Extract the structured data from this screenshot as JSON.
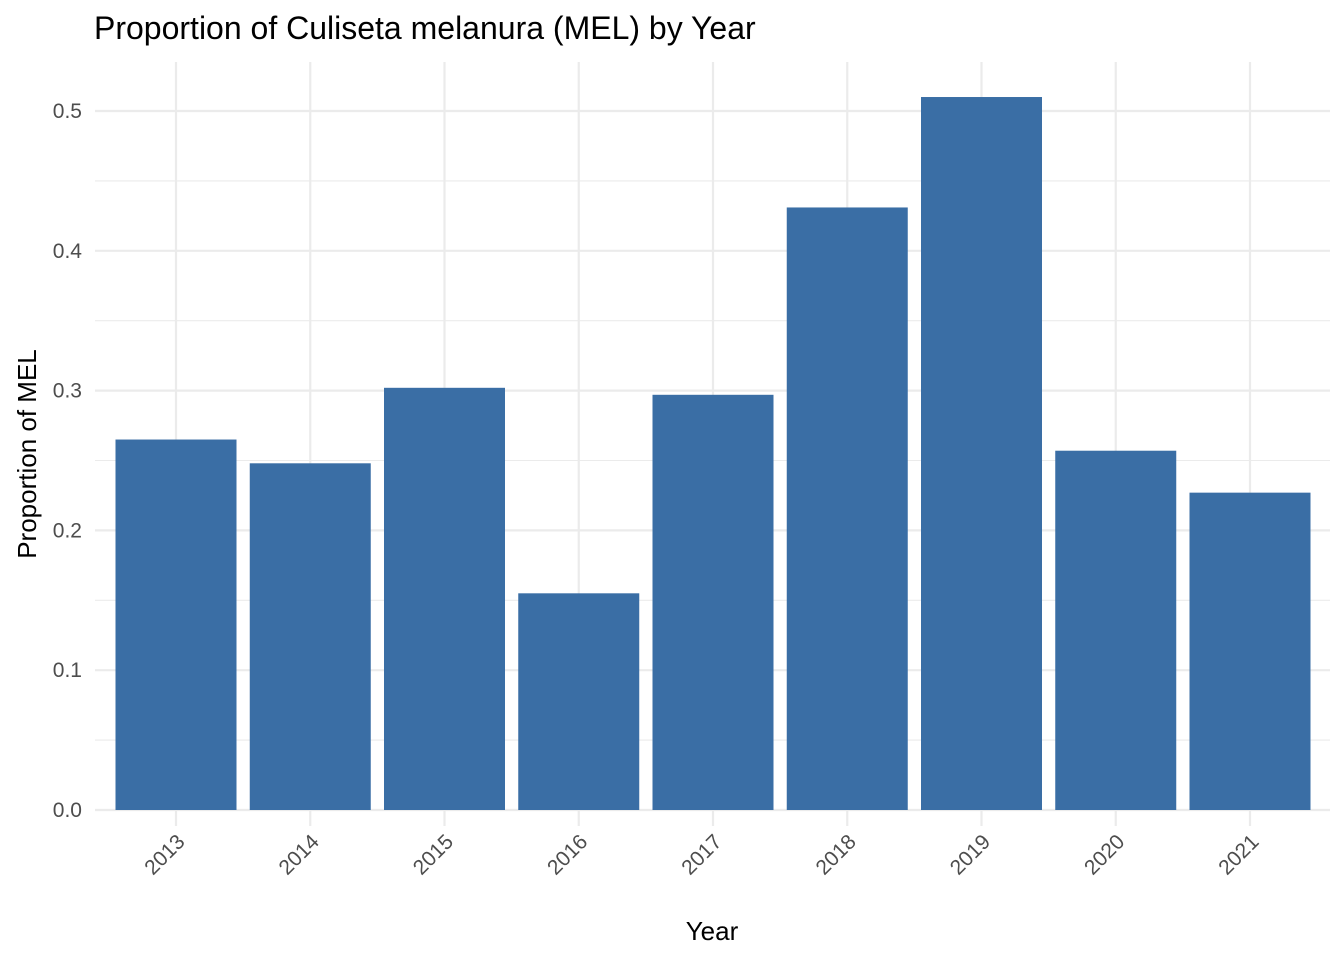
{
  "chart_data": {
    "type": "bar",
    "title": "Proportion of Culiseta melanura (MEL) by Year",
    "xlabel": "Year",
    "ylabel": "Proportion of MEL",
    "categories": [
      "2013",
      "2014",
      "2015",
      "2016",
      "2017",
      "2018",
      "2019",
      "2020",
      "2021"
    ],
    "values": [
      0.265,
      0.248,
      0.302,
      0.155,
      0.297,
      0.431,
      0.51,
      0.257,
      0.227
    ],
    "ylim": [
      0,
      0.535
    ],
    "yticks": [
      0.0,
      0.1,
      0.2,
      0.3,
      0.4,
      0.5
    ],
    "ytick_labels": [
      "0.0",
      "0.1",
      "0.2",
      "0.3",
      "0.4",
      "0.5"
    ],
    "grid": true,
    "legend": "none",
    "bar_color": "#3a6ea5",
    "grid_color": "#ebebeb"
  }
}
